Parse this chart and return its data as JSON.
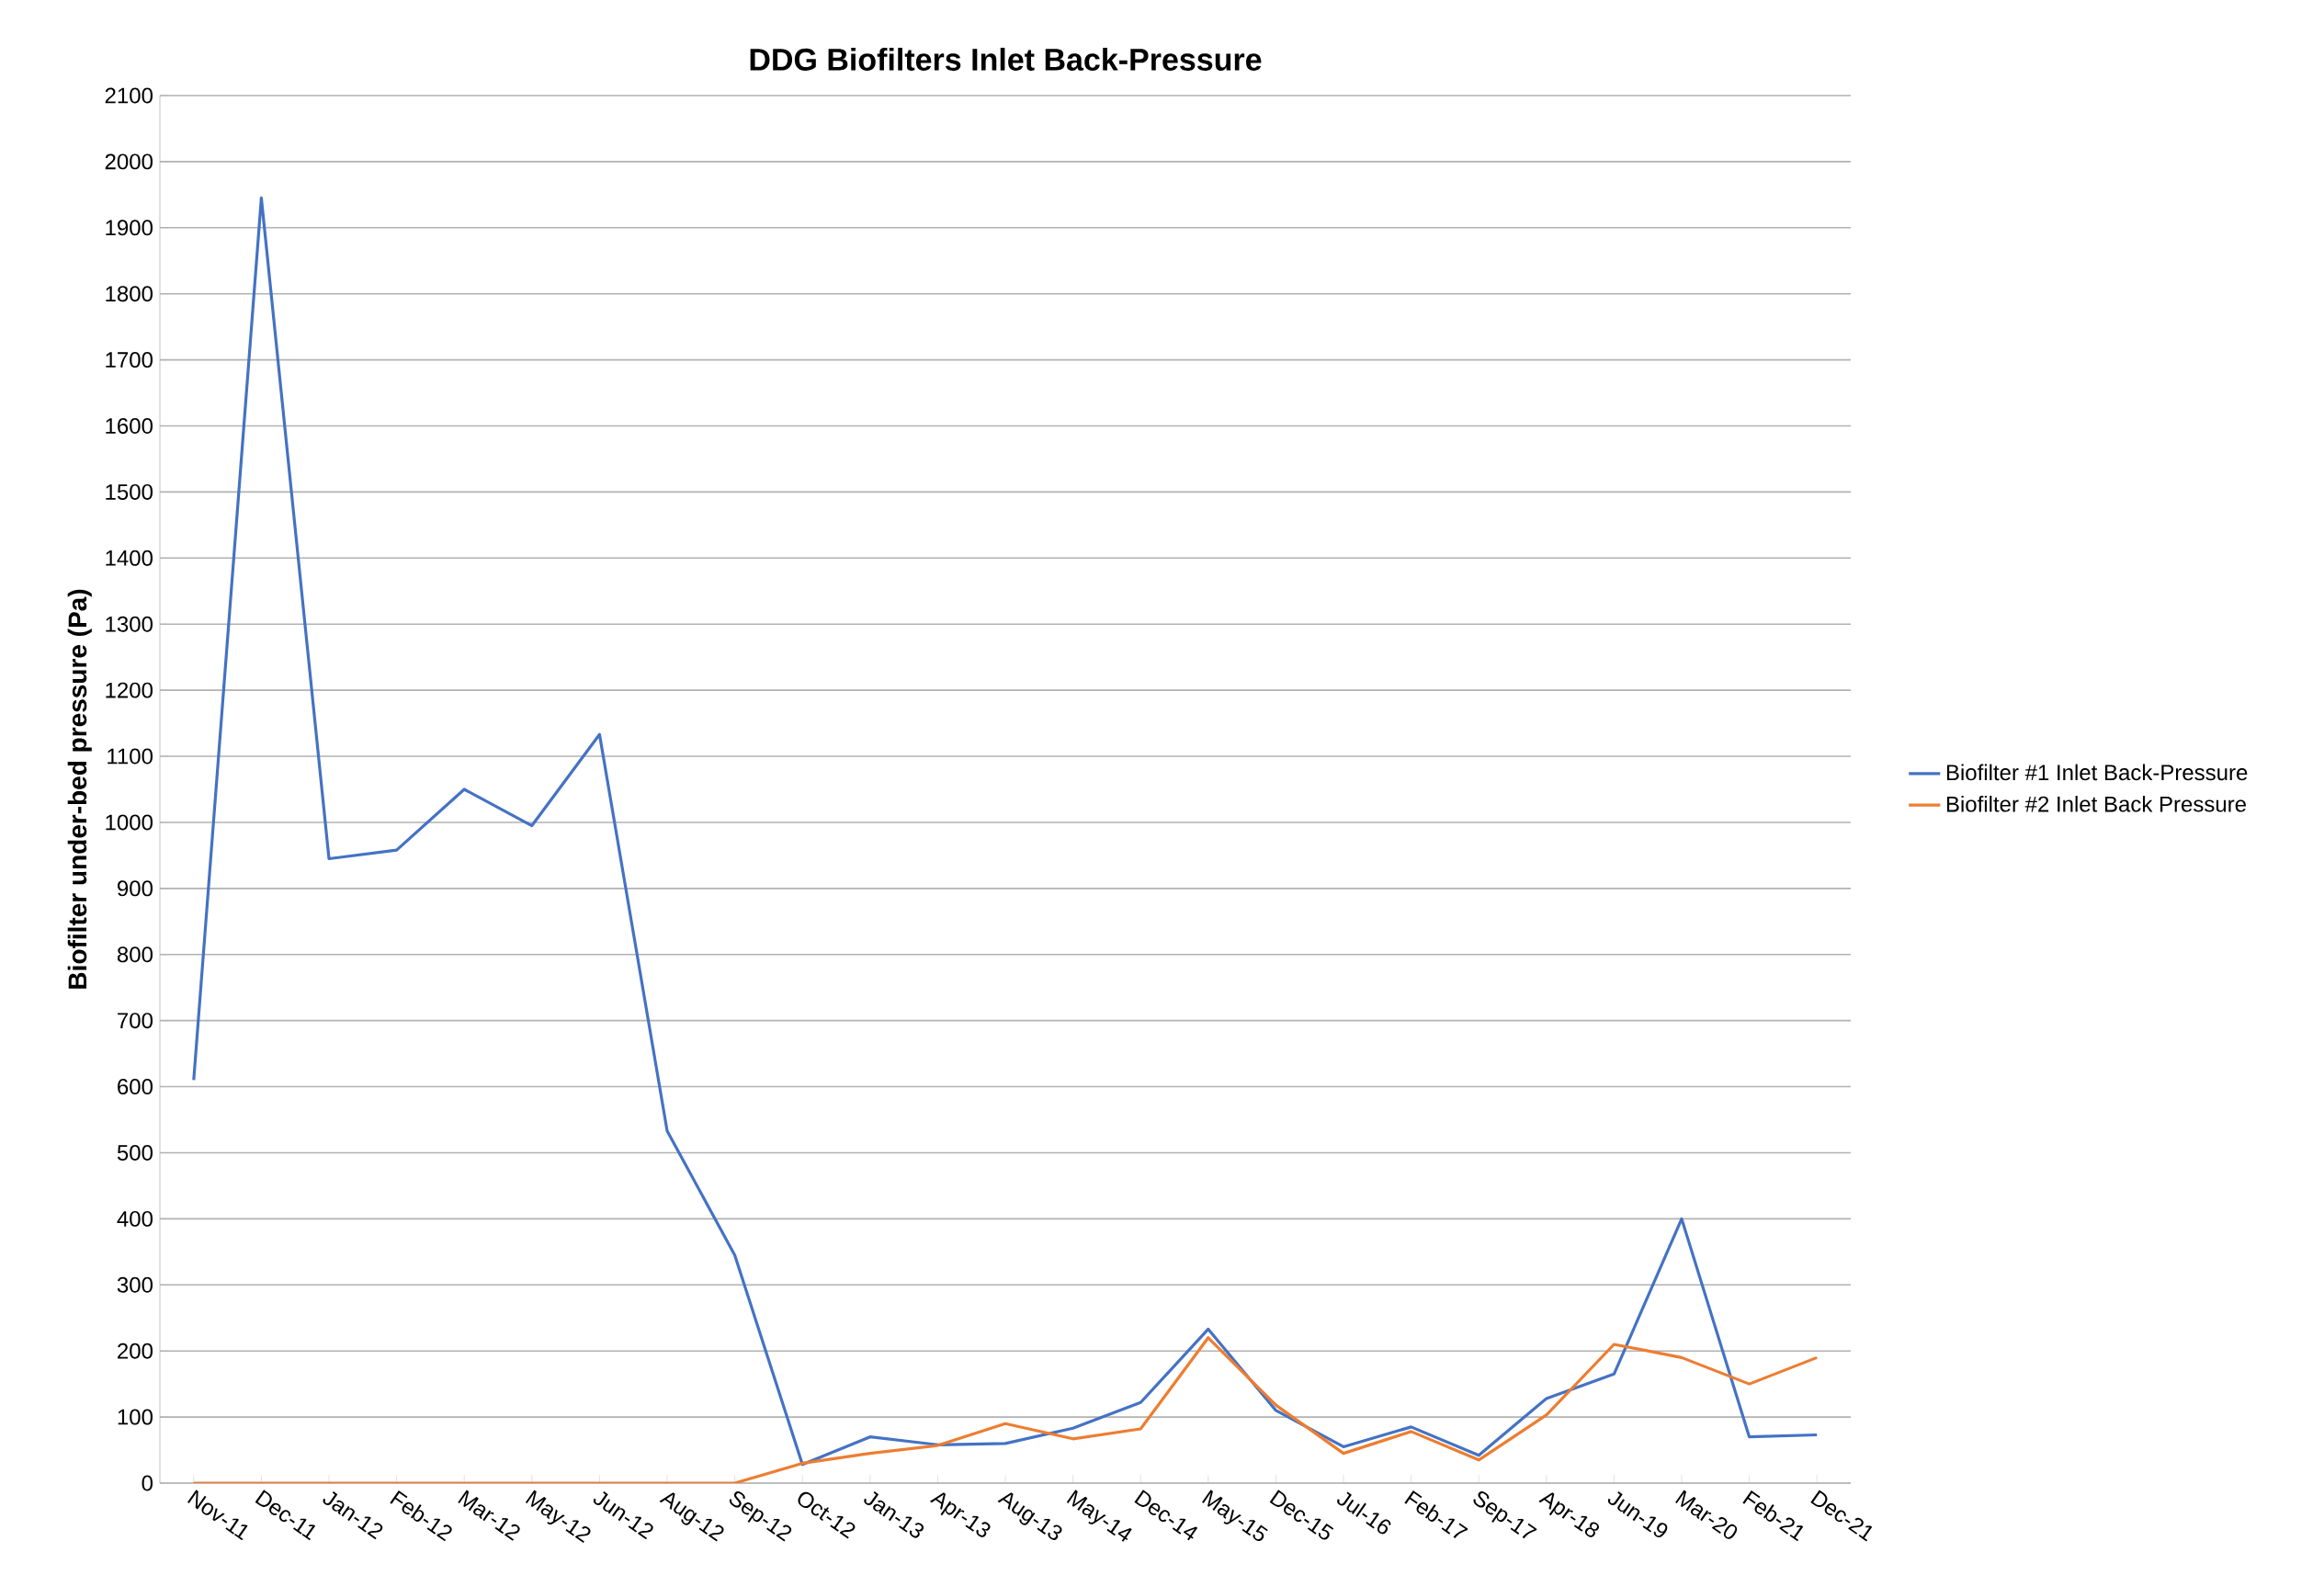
{
  "chart_data": {
    "type": "line",
    "title": "DDG Biofilters Inlet Back-Pressure",
    "ylabel": "Biofilter under-bed pressure (Pa)",
    "categories": [
      "Nov-11",
      "Dec-11",
      "Jan-12",
      "Feb-12",
      "Mar-12",
      "May-12",
      "Jun-12",
      "Aug-12",
      "Sep-12",
      "Oct-12",
      "Jan-13",
      "Apr-13",
      "Aug-13",
      "May-14",
      "Dec-14",
      "May-15",
      "Dec-15",
      "Jul-16",
      "Feb-17",
      "Sep-17",
      "Apr-18",
      "Jun-19",
      "Mar-20",
      "Feb-21",
      "Dec-21"
    ],
    "series": [
      {
        "name": "Biofilter #1 Inlet Back-Pressure",
        "color": "#4472c4",
        "values": [
          610,
          1945,
          945,
          958,
          1050,
          995,
          1133,
          533,
          345,
          28,
          70,
          58,
          60,
          83,
          122,
          233,
          110,
          55,
          85,
          42,
          128,
          165,
          400,
          70,
          73
        ]
      },
      {
        "name": "Biofilter #2 Inlet Back Pressure",
        "color": "#ed7d31",
        "values": [
          0,
          0,
          0,
          0,
          0,
          0,
          0,
          0,
          0,
          30,
          45,
          57,
          90,
          67,
          82,
          220,
          118,
          45,
          78,
          35,
          103,
          210,
          190,
          150,
          190
        ]
      }
    ],
    "ylim": [
      0,
      2100
    ],
    "yticks": [
      0,
      100,
      200,
      300,
      400,
      500,
      600,
      700,
      800,
      900,
      1000,
      1100,
      1200,
      1300,
      1400,
      1500,
      1600,
      1700,
      1800,
      1900,
      2000,
      2100
    ],
    "grid": "y",
    "legend": "right"
  }
}
